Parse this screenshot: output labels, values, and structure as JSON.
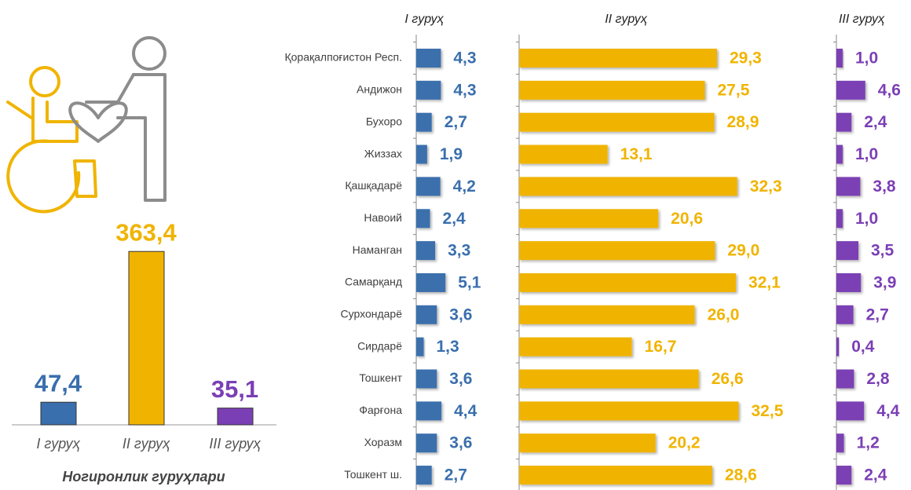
{
  "chart_data": [
    {
      "type": "bar",
      "categories": [
        "I гуруҳ",
        "II гуруҳ",
        "III гуруҳ"
      ],
      "values": [
        47.4,
        363.4,
        35.1
      ],
      "value_labels": [
        "47,4",
        "363,4",
        "35,1"
      ],
      "colors": [
        "#3a6fad",
        "#f0b400",
        "#7b3fb5"
      ],
      "xlabel": "Ногиронлик гуруҳлари",
      "ylim": [
        0,
        400
      ]
    },
    {
      "type": "hbar-panels",
      "categories": [
        "Қорақалпоғистон Респ.",
        "Андижон",
        "Бухоро",
        "Жиззах",
        "Қашқадарё",
        "Навоий",
        "Наманган",
        "Самарқанд",
        "Сурхондарё",
        "Сирдарё",
        "Тошкент",
        "Фарғона",
        "Хоразм",
        "Тошкент ш."
      ],
      "series": [
        {
          "name": "I гуруҳ",
          "color": "#3a6fad",
          "xlim": [
            0,
            20
          ],
          "values": [
            4.3,
            4.3,
            2.7,
            1.9,
            4.2,
            2.4,
            3.3,
            5.1,
            3.6,
            1.3,
            3.6,
            4.4,
            3.6,
            2.7
          ],
          "value_labels": [
            "4,3",
            "4,3",
            "2,7",
            "1,9",
            "4,2",
            "2,4",
            "3,3",
            "5,1",
            "3,6",
            "1,3",
            "3,6",
            "4,4",
            "3,6",
            "2,7"
          ]
        },
        {
          "name": "II гуруҳ",
          "color": "#f0b400",
          "xlim": [
            0,
            40
          ],
          "values": [
            29.3,
            27.5,
            28.9,
            13.1,
            32.3,
            20.6,
            29.0,
            32.1,
            26.0,
            16.7,
            26.6,
            32.5,
            20.2,
            28.6
          ],
          "value_labels": [
            "29,3",
            "27,5",
            "28,9",
            "13,1",
            "32,3",
            "20,6",
            "29,0",
            "32,1",
            "26,0",
            "16,7",
            "26,6",
            "32,5",
            "20,2",
            "28,6"
          ]
        },
        {
          "name": "III гуруҳ",
          "color": "#7b3fb5",
          "xlim": [
            0,
            10
          ],
          "values": [
            1.0,
            4.6,
            2.4,
            1.0,
            3.8,
            1.0,
            3.5,
            3.9,
            2.7,
            0.4,
            2.8,
            4.4,
            1.2,
            2.4
          ],
          "value_labels": [
            "1,0",
            "4,6",
            "2,4",
            "1,0",
            "3,8",
            "1,0",
            "3,5",
            "3,9",
            "2,7",
            "0,4",
            "2,8",
            "4,4",
            "1,2",
            "2,4"
          ]
        }
      ]
    }
  ]
}
